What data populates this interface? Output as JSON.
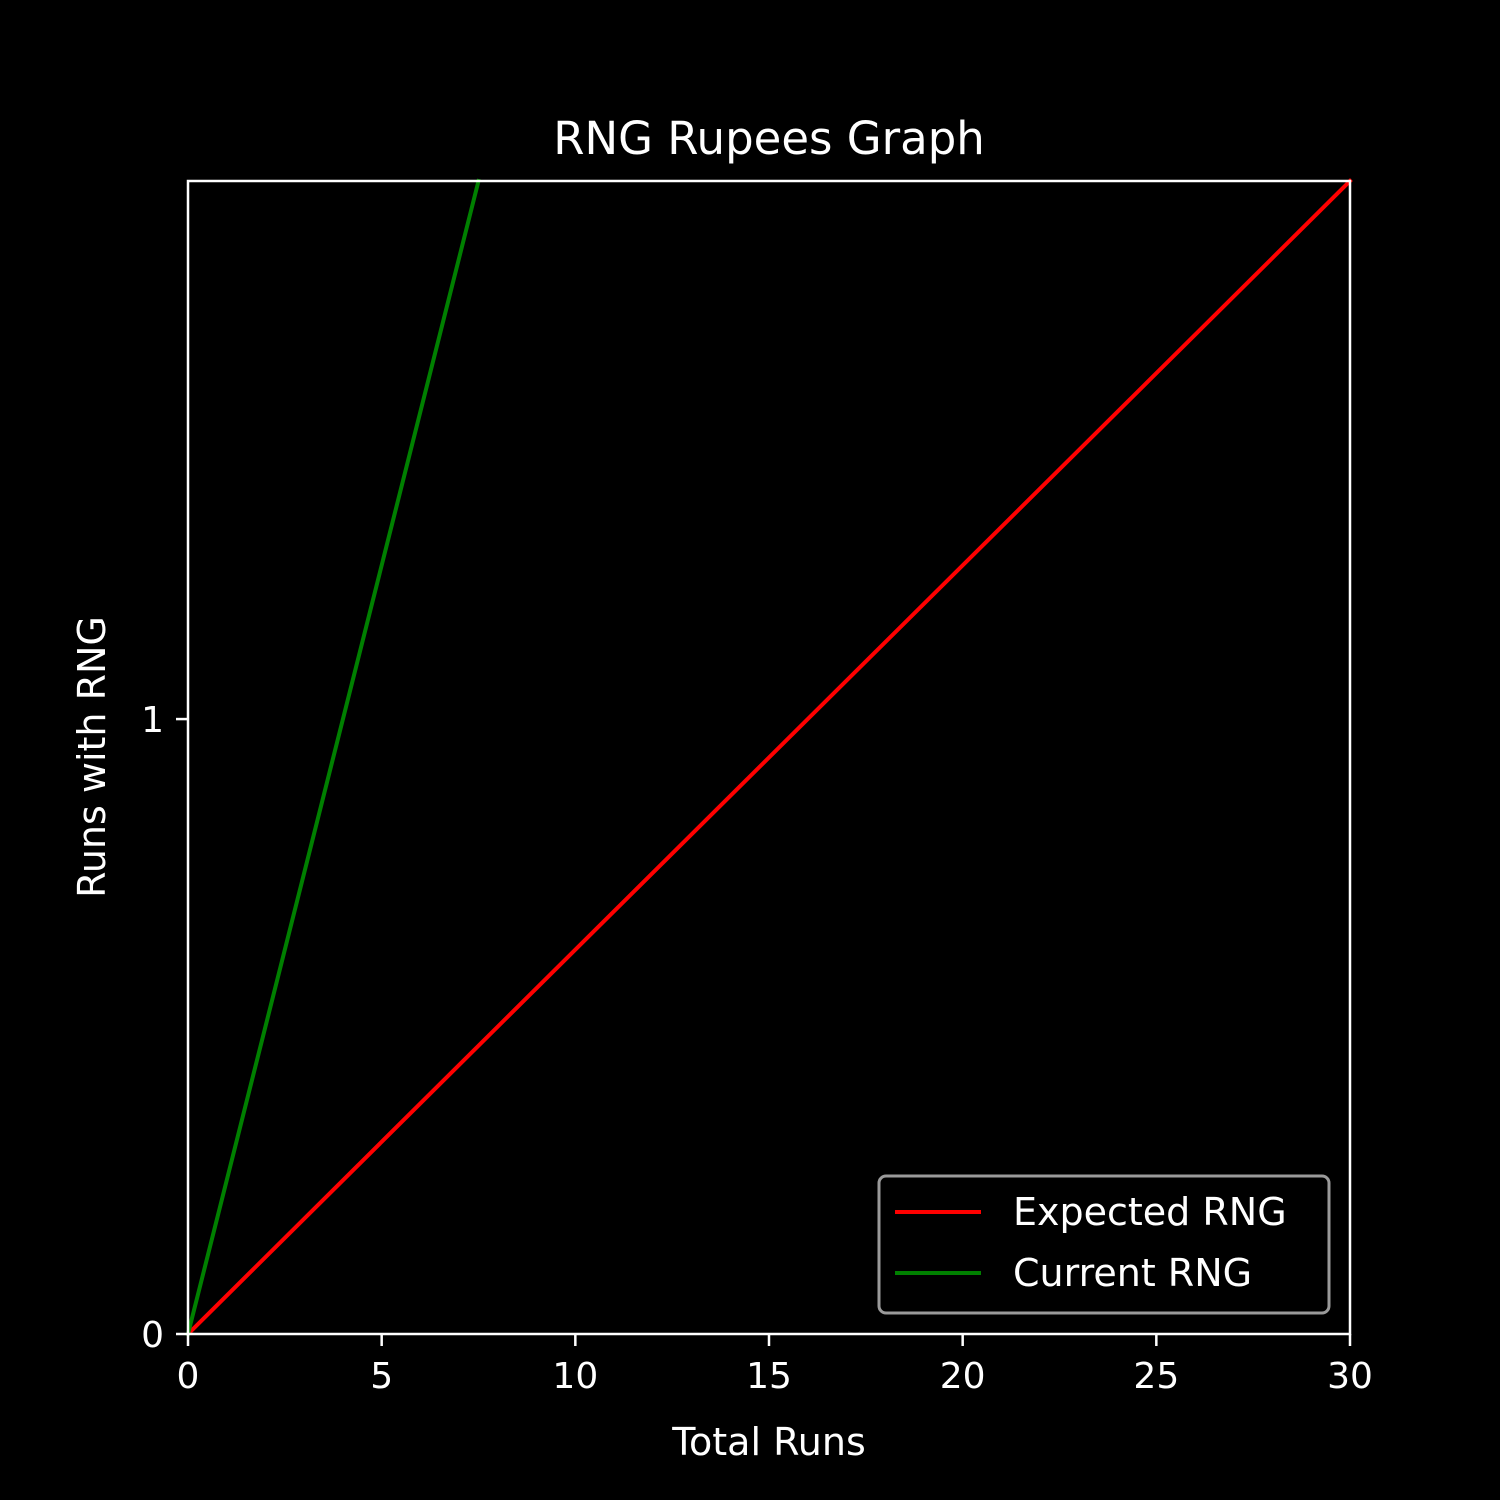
{
  "chart_data": {
    "type": "line",
    "title": "RNG Rupees Graph",
    "xlabel": "Total Runs",
    "ylabel": "Runs with RNG",
    "xlim": [
      0,
      30
    ],
    "ylim": [
      0,
      1.875
    ],
    "xticks": [
      "0",
      "5",
      "10",
      "15",
      "20",
      "25",
      "30"
    ],
    "yticks": [
      "0",
      "1"
    ],
    "grid": false,
    "legend_position": "lower-right",
    "background": "#000000",
    "foreground": "#ffffff",
    "series": [
      {
        "name": "Expected RNG",
        "color": "#ff0000",
        "x": [
          0,
          30
        ],
        "y": [
          0,
          1.875
        ]
      },
      {
        "name": "Current RNG",
        "color": "#008000",
        "x": [
          0,
          7.5
        ],
        "y": [
          0,
          1.875
        ]
      }
    ]
  }
}
